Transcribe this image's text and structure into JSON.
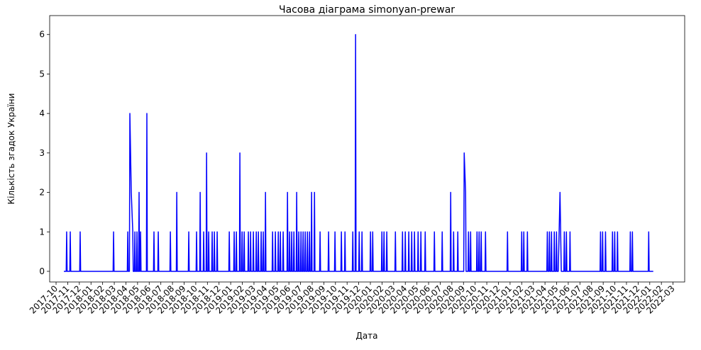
{
  "chart_data": {
    "type": "line",
    "title": "Часова діаграма simonyan-prewar",
    "x_label": "Дата",
    "y_label": "Кількість згадок України",
    "xlim": [
      -0.55,
      54.0
    ],
    "ylim": [
      -0.27,
      6.48
    ],
    "yticks": [
      0,
      1,
      2,
      3,
      4,
      5,
      6
    ],
    "xticks": [
      {
        "value": 0,
        "label": "2017-10"
      },
      {
        "value": 1,
        "label": "2017-11"
      },
      {
        "value": 2,
        "label": "2017-12"
      },
      {
        "value": 3,
        "label": "2018-01"
      },
      {
        "value": 4,
        "label": "2018-02"
      },
      {
        "value": 5,
        "label": "2018-03"
      },
      {
        "value": 6,
        "label": "2018-04"
      },
      {
        "value": 7,
        "label": "2018-05"
      },
      {
        "value": 8,
        "label": "2018-06"
      },
      {
        "value": 9,
        "label": "2018-07"
      },
      {
        "value": 10,
        "label": "2018-08"
      },
      {
        "value": 11,
        "label": "2018-09"
      },
      {
        "value": 12,
        "label": "2018-10"
      },
      {
        "value": 13,
        "label": "2018-11"
      },
      {
        "value": 14,
        "label": "2018-12"
      },
      {
        "value": 15,
        "label": "2019-01"
      },
      {
        "value": 16,
        "label": "2019-02"
      },
      {
        "value": 17,
        "label": "2019-03"
      },
      {
        "value": 18,
        "label": "2019-04"
      },
      {
        "value": 19,
        "label": "2019-05"
      },
      {
        "value": 20,
        "label": "2019-06"
      },
      {
        "value": 21,
        "label": "2019-07"
      },
      {
        "value": 22,
        "label": "2019-08"
      },
      {
        "value": 23,
        "label": "2019-09"
      },
      {
        "value": 24,
        "label": "2019-10"
      },
      {
        "value": 25,
        "label": "2019-11"
      },
      {
        "value": 26,
        "label": "2019-12"
      },
      {
        "value": 27,
        "label": "2020-01"
      },
      {
        "value": 28,
        "label": "2020-02"
      },
      {
        "value": 29,
        "label": "2020-03"
      },
      {
        "value": 30,
        "label": "2020-04"
      },
      {
        "value": 31,
        "label": "2020-05"
      },
      {
        "value": 32,
        "label": "2020-06"
      },
      {
        "value": 33,
        "label": "2020-07"
      },
      {
        "value": 34,
        "label": "2020-08"
      },
      {
        "value": 35,
        "label": "2020-09"
      },
      {
        "value": 36,
        "label": "2020-10"
      },
      {
        "value": 37,
        "label": "2020-11"
      },
      {
        "value": 38,
        "label": "2020-12"
      },
      {
        "value": 39,
        "label": "2021-01"
      },
      {
        "value": 40,
        "label": "2021-02"
      },
      {
        "value": 41,
        "label": "2021-03"
      },
      {
        "value": 42,
        "label": "2021-04"
      },
      {
        "value": 43,
        "label": "2021-05"
      },
      {
        "value": 44,
        "label": "2021-06"
      },
      {
        "value": 45,
        "label": "2021-07"
      },
      {
        "value": 46,
        "label": "2021-08"
      },
      {
        "value": 47,
        "label": "2021-09"
      },
      {
        "value": 48,
        "label": "2021-10"
      },
      {
        "value": 49,
        "label": "2021-11"
      },
      {
        "value": 50,
        "label": "2021-12"
      },
      {
        "value": 51,
        "label": "2022-01"
      },
      {
        "value": 52,
        "label": "2022-02"
      },
      {
        "value": 53,
        "label": "2022-03"
      }
    ],
    "series": [
      {
        "color": "#0000ff",
        "x": [
          0.67,
          0.87,
          0.91,
          0.95,
          1.18,
          1.22,
          1.26,
          2.03,
          2.07,
          2.11,
          4.9,
          4.94,
          4.98,
          6.12,
          6.16,
          6.2,
          6.3,
          6.34,
          6.46,
          6.59,
          6.63,
          6.73,
          6.77,
          6.81,
          6.91,
          6.95,
          6.99,
          7.09,
          7.13,
          7.17,
          7.22,
          7.26,
          7.3,
          7.76,
          7.8,
          7.84,
          8.37,
          8.41,
          8.45,
          8.74,
          8.78,
          8.82,
          9.78,
          9.82,
          9.86,
          10.33,
          10.37,
          10.41,
          11.36,
          11.4,
          11.44,
          12.03,
          12.07,
          12.11,
          12.34,
          12.38,
          12.42,
          12.64,
          12.68,
          12.72,
          12.89,
          12.93,
          12.97,
          13.07,
          13.11,
          13.15,
          13.37,
          13.41,
          13.45,
          13.56,
          13.6,
          13.64,
          13.8,
          13.84,
          13.88,
          14.84,
          14.88,
          14.92,
          15.26,
          15.3,
          15.34,
          15.45,
          15.49,
          15.53,
          15.75,
          15.79,
          15.83,
          15.94,
          15.98,
          16.02,
          16.12,
          16.16,
          16.2,
          16.48,
          16.52,
          16.56,
          16.67,
          16.71,
          16.75,
          16.91,
          16.95,
          16.99,
          17.16,
          17.2,
          17.24,
          17.34,
          17.38,
          17.42,
          17.58,
          17.62,
          17.66,
          17.76,
          17.8,
          17.84,
          17.95,
          17.99,
          18.03,
          18.56,
          18.6,
          18.64,
          18.8,
          18.84,
          18.88,
          19.05,
          19.09,
          19.13,
          19.23,
          19.27,
          19.31,
          19.47,
          19.51,
          19.55,
          19.84,
          19.88,
          19.92,
          20.02,
          20.06,
          20.1,
          20.2,
          20.24,
          20.28,
          20.39,
          20.43,
          20.47,
          20.63,
          20.67,
          20.71,
          20.81,
          20.85,
          20.89,
          21.0,
          21.04,
          21.08,
          21.18,
          21.22,
          21.26,
          21.36,
          21.4,
          21.44,
          21.55,
          21.59,
          21.63,
          21.73,
          21.77,
          21.81,
          21.91,
          21.95,
          21.99,
          22.16,
          22.2,
          22.24,
          22.64,
          22.68,
          22.72,
          23.37,
          23.41,
          23.45,
          23.92,
          23.96,
          24.0,
          24.47,
          24.51,
          24.55,
          24.78,
          24.82,
          24.86,
          25.45,
          25.49,
          25.53,
          25.69,
          25.73,
          25.77,
          26.0,
          26.04,
          26.08,
          26.24,
          26.28,
          26.32,
          26.97,
          27.01,
          27.05,
          27.16,
          27.2,
          27.24,
          27.95,
          27.99,
          28.03,
          28.13,
          28.17,
          28.21,
          28.37,
          28.41,
          28.45,
          29.11,
          29.15,
          29.19,
          29.72,
          29.76,
          29.8,
          29.96,
          30.0,
          30.04,
          30.26,
          30.3,
          30.34,
          30.51,
          30.55,
          30.59,
          30.75,
          30.79,
          30.83,
          31.06,
          31.1,
          31.14,
          31.3,
          31.34,
          31.38,
          31.67,
          31.71,
          31.75,
          32.46,
          32.5,
          32.54,
          33.13,
          33.17,
          33.21,
          33.86,
          33.9,
          33.94,
          34.11,
          34.15,
          34.19,
          34.47,
          34.51,
          34.55,
          35.02,
          35.06,
          35.18,
          35.22,
          35.39,
          35.43,
          35.47,
          35.57,
          35.61,
          35.65,
          36.12,
          36.16,
          36.2,
          36.3,
          36.34,
          36.38,
          36.48,
          36.52,
          36.56,
          36.85,
          36.89,
          36.93,
          38.74,
          38.78,
          38.82,
          39.96,
          40.0,
          40.04,
          40.14,
          40.18,
          40.22,
          40.45,
          40.49,
          40.53,
          42.16,
          42.2,
          42.24,
          42.34,
          42.38,
          42.42,
          42.52,
          42.56,
          42.6,
          42.76,
          42.8,
          42.84,
          42.95,
          42.99,
          43.03,
          43.14,
          43.29,
          43.4,
          43.62,
          43.66,
          43.7,
          43.8,
          43.84,
          43.88,
          44.11,
          44.15,
          44.19,
          46.73,
          46.77,
          46.81,
          46.91,
          46.95,
          46.99,
          47.16,
          47.2,
          47.24,
          47.76,
          47.8,
          47.84,
          47.95,
          47.99,
          48.03,
          48.19,
          48.23,
          48.27,
          49.29,
          49.33,
          49.37,
          49.47,
          49.51,
          49.55,
          50.87,
          50.91,
          50.95,
          51.3
        ],
        "values": [
          0,
          0,
          1,
          0,
          0,
          1,
          0,
          0,
          1,
          0,
          0,
          1,
          0,
          0,
          1,
          0,
          0,
          4,
          2,
          1,
          0,
          0,
          1,
          0,
          0,
          1,
          0,
          0,
          2,
          0,
          0,
          1,
          0,
          0,
          4,
          0,
          0,
          1,
          0,
          0,
          1,
          0,
          0,
          1,
          0,
          0,
          2,
          0,
          0,
          1,
          0,
          0,
          1,
          0,
          0,
          2,
          0,
          0,
          1,
          0,
          0,
          3,
          0,
          0,
          1,
          0,
          0,
          1,
          0,
          0,
          1,
          0,
          0,
          1,
          0,
          0,
          1,
          0,
          0,
          1,
          0,
          0,
          1,
          0,
          0,
          3,
          0,
          0,
          1,
          0,
          0,
          1,
          0,
          0,
          1,
          0,
          0,
          1,
          0,
          0,
          1,
          0,
          0,
          1,
          0,
          0,
          1,
          0,
          0,
          1,
          0,
          0,
          1,
          0,
          0,
          2,
          0,
          0,
          1,
          0,
          0,
          1,
          0,
          0,
          1,
          0,
          0,
          1,
          0,
          0,
          1,
          0,
          0,
          2,
          0,
          0,
          1,
          0,
          0,
          1,
          0,
          0,
          1,
          0,
          0,
          2,
          0,
          0,
          1,
          0,
          0,
          1,
          0,
          0,
          1,
          0,
          0,
          1,
          0,
          0,
          1,
          0,
          0,
          1,
          0,
          0,
          2,
          0,
          0,
          2,
          0,
          0,
          1,
          0,
          0,
          1,
          0,
          0,
          1,
          0,
          0,
          1,
          0,
          0,
          1,
          0,
          0,
          1,
          0,
          0,
          6,
          0,
          0,
          1,
          0,
          0,
          1,
          0,
          0,
          1,
          0,
          0,
          1,
          0,
          0,
          1,
          0,
          0,
          1,
          0,
          0,
          1,
          0,
          0,
          1,
          0,
          0,
          1,
          0,
          0,
          1,
          0,
          0,
          1,
          0,
          0,
          1,
          0,
          0,
          1,
          0,
          0,
          1,
          0,
          0,
          1,
          0,
          0,
          1,
          0,
          0,
          1,
          0,
          0,
          1,
          0,
          0,
          2,
          0,
          0,
          1,
          0,
          0,
          1,
          0,
          0,
          3,
          2,
          0,
          0,
          1,
          0,
          0,
          1,
          0,
          0,
          1,
          0,
          0,
          1,
          0,
          0,
          1,
          0,
          0,
          1,
          0,
          0,
          1,
          0,
          0,
          1,
          0,
          0,
          1,
          0,
          0,
          1,
          0,
          0,
          1,
          0,
          0,
          1,
          0,
          0,
          1,
          0,
          0,
          1,
          0,
          0,
          1,
          0,
          0,
          2,
          0,
          0,
          1,
          0,
          0,
          1,
          0,
          0,
          1,
          0,
          0,
          1,
          0,
          0,
          1,
          0,
          0,
          1,
          0,
          0,
          1,
          0,
          0,
          1,
          0,
          0,
          1,
          0,
          0,
          1,
          0,
          0,
          1,
          0,
          0,
          1,
          0,
          0
        ]
      }
    ]
  }
}
